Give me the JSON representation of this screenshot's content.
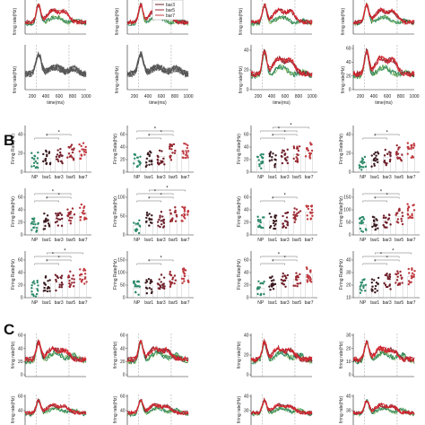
{
  "panel_labels": {
    "b": "B",
    "c": "C"
  },
  "colors": {
    "NP": "#2e8b6a",
    "bar1": "#3a1a1f",
    "bar3": "#6e1f2a",
    "bar5": "#9b2a33",
    "bar7": "#c0393f",
    "gray": "#555555",
    "green_light": "#8fc46a",
    "green_dark": "#1f6e2a",
    "red_bright": "#e0202a",
    "dashed": "#999999"
  },
  "legend": [
    "bar3",
    "bar5",
    "bar7"
  ],
  "panel_a": {
    "ylabel": "firing rate(Hz)",
    "xlabel": "time(ms)",
    "x_ticks": [
      "200",
      "400",
      "600",
      "800",
      "1000"
    ],
    "y_ticks_bottom_right": [
      "40",
      "20",
      "0"
    ],
    "y_ticks_bottom_far_right": [
      "60",
      "40",
      "20",
      "0"
    ]
  },
  "panel_b": {
    "ylabel": "Firing Rate(Hz)",
    "categories": [
      "NP",
      "bar1",
      "bar3",
      "bar5",
      "bar7"
    ],
    "sig_marker": "*",
    "grid": [
      [
        {
          "yt": [
            "40",
            "20",
            "0"
          ]
        },
        {
          "yt": [
            "60",
            "40",
            "20",
            "0"
          ]
        },
        {
          "yt": [
            "60",
            "40",
            "20",
            "0"
          ]
        },
        {
          "yt": [
            "40",
            "20",
            "0"
          ]
        }
      ],
      [
        {
          "yt": [
            "60",
            "40",
            "20",
            "0"
          ]
        },
        {
          "yt": [
            "100",
            "50",
            "0"
          ]
        },
        {
          "yt": [
            "60",
            "40",
            "20",
            "0"
          ]
        },
        {
          "yt": [
            "150",
            "100",
            "50",
            "0"
          ]
        }
      ],
      [
        {
          "yt": [
            "60",
            "40",
            "20",
            "0"
          ]
        },
        {
          "yt": [
            "150",
            "100",
            "50",
            "0"
          ]
        },
        {
          "yt": [
            "60",
            "40",
            "20",
            "0"
          ]
        },
        {
          "yt": [
            "40",
            "30",
            "20",
            "10"
          ]
        }
      ]
    ]
  },
  "panel_c": {
    "ylabel": "firing rate(Hz)",
    "y_ticks": [
      [
        "60",
        "40",
        "20",
        "0"
      ],
      [
        "60",
        "40",
        "20",
        "0"
      ],
      [
        "40",
        "20",
        "0"
      ],
      [
        "30",
        "20",
        "10",
        "0"
      ]
    ],
    "y_ticks_bottom": [
      [
        "60",
        "40"
      ],
      [
        "60",
        "40"
      ],
      [
        "40",
        "30"
      ],
      [
        "40",
        "30"
      ]
    ]
  }
}
